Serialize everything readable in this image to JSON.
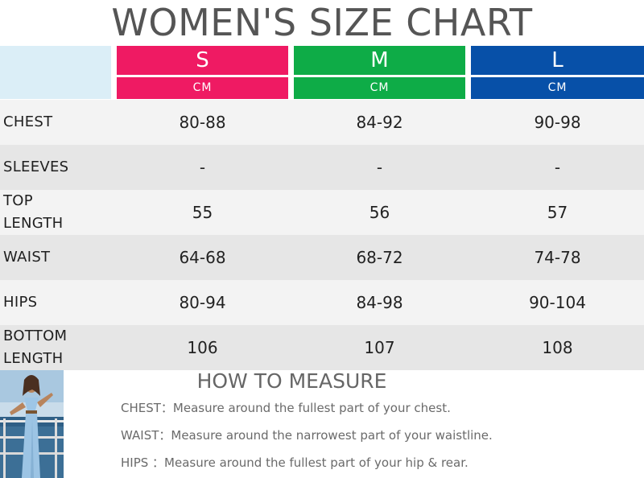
{
  "title": "WOMEN'S SIZE CHART",
  "sizes": [
    {
      "label": "S",
      "unit": "CM",
      "color": "#ef1a63"
    },
    {
      "label": "M",
      "unit": "CM",
      "color": "#0eac47"
    },
    {
      "label": "L",
      "unit": "CM",
      "color": "#0750a8"
    }
  ],
  "rows": [
    {
      "label": "CHEST",
      "values": [
        "80-88",
        "84-92",
        "90-98"
      ]
    },
    {
      "label": "SLEEVES",
      "values": [
        "-",
        "-",
        "-"
      ]
    },
    {
      "label": "TOP LENGTH",
      "values": [
        "55",
        "56",
        "57"
      ]
    },
    {
      "label": "WAIST",
      "values": [
        "64-68",
        "68-72",
        "74-78"
      ]
    },
    {
      "label": "HIPS",
      "values": [
        "80-94",
        "84-98",
        "90-104"
      ]
    },
    {
      "label": "BOTTOM LENGTH",
      "values": [
        "106",
        "107",
        "108"
      ]
    }
  ],
  "row_colors": [
    "#f3f3f3",
    "#e6e6e6"
  ],
  "header_corner_color": "#dbeef7",
  "how_to_measure": {
    "title": "HOW TO MEASURE",
    "notes": [
      {
        "key": "CHEST：",
        "text": "Measure around the fullest part of your chest."
      },
      {
        "key": "WAIST：",
        "text": "Measure around the narrowest part of your waistline."
      },
      {
        "key": "HIPS ：",
        "text": "Measure around the fullest part of your hip & rear."
      }
    ]
  },
  "icons": {
    "photo": "model-photo"
  }
}
